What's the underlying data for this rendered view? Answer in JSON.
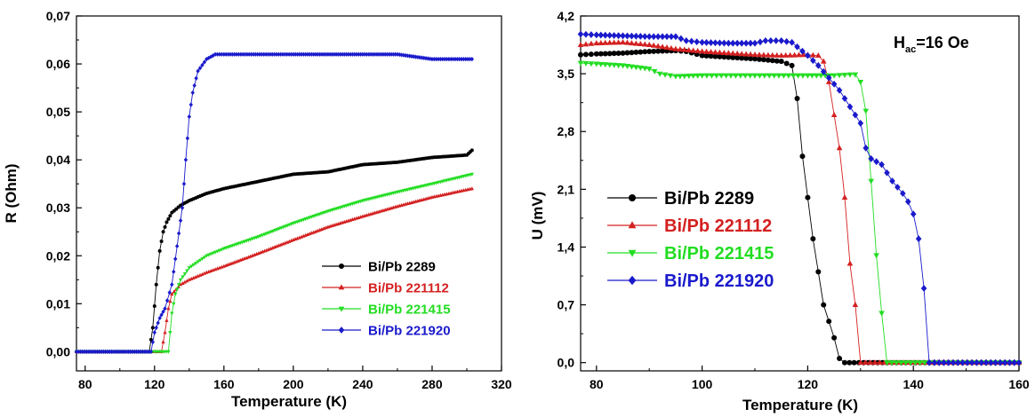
{
  "chart_data": [
    {
      "type": "line",
      "xlabel": "Temperature (K)",
      "ylabel": "R (Ohm)",
      "xlim": [
        75,
        320
      ],
      "ylim": [
        -0.004,
        0.07
      ],
      "xticks": [
        "80",
        "120",
        "160",
        "200",
        "240",
        "280",
        "320"
      ],
      "xtick_values": [
        80,
        120,
        160,
        200,
        240,
        280,
        320
      ],
      "yticks": [
        "0,00",
        "0,01",
        "0,02",
        "0,03",
        "0,04",
        "0,05",
        "0,06",
        "0,07"
      ],
      "ytick_values": [
        0,
        0.01,
        0.02,
        0.03,
        0.04,
        0.05,
        0.06,
        0.07
      ],
      "legend_position": "bottom-right",
      "series": [
        {
          "name": "Bi/Pb 2289",
          "color": "#000000",
          "marker": "circle",
          "x": [
            75,
            117,
            119,
            121,
            123,
            125,
            127,
            130,
            135,
            140,
            150,
            160,
            180,
            200,
            220,
            240,
            260,
            280,
            300,
            303
          ],
          "y": [
            0,
            0,
            0.005,
            0.014,
            0.021,
            0.025,
            0.027,
            0.029,
            0.0305,
            0.0315,
            0.033,
            0.034,
            0.0355,
            0.037,
            0.0375,
            0.039,
            0.0395,
            0.0405,
            0.041,
            0.042
          ]
        },
        {
          "name": "Bi/Pb 221112",
          "color": "#d42020",
          "marker": "triangle-up",
          "x": [
            75,
            124,
            126,
            128,
            130,
            135,
            140,
            150,
            160,
            180,
            200,
            220,
            240,
            260,
            280,
            303
          ],
          "y": [
            0,
            0,
            0.004,
            0.009,
            0.012,
            0.014,
            0.015,
            0.0165,
            0.0178,
            0.0205,
            0.0233,
            0.026,
            0.0282,
            0.0303,
            0.0322,
            0.034
          ]
        },
        {
          "name": "Bi/Pb 221415",
          "color": "#22dd22",
          "marker": "triangle-down",
          "x": [
            75,
            128,
            130,
            132,
            135,
            140,
            150,
            160,
            180,
            200,
            220,
            240,
            260,
            280,
            303
          ],
          "y": [
            0,
            0,
            0.008,
            0.012,
            0.015,
            0.0175,
            0.02,
            0.0215,
            0.024,
            0.0268,
            0.0293,
            0.0315,
            0.0333,
            0.035,
            0.037
          ]
        },
        {
          "name": "Bi/Pb 221920",
          "color": "#1a1acc",
          "marker": "diamond",
          "x": [
            75,
            118,
            120,
            123,
            126,
            130,
            133,
            136,
            138,
            140,
            142,
            145,
            150,
            155,
            160,
            200,
            220,
            240,
            260,
            280,
            303
          ],
          "y": [
            0,
            0,
            0.004,
            0.007,
            0.009,
            0.014,
            0.022,
            0.03,
            0.04,
            0.049,
            0.054,
            0.0585,
            0.061,
            0.062,
            0.062,
            0.062,
            0.062,
            0.062,
            0.062,
            0.061,
            0.061
          ]
        }
      ]
    },
    {
      "type": "line",
      "xlabel": "Temperature (K)",
      "ylabel": "U (mV)",
      "annotation": "H",
      "annotation_sub": "ac",
      "annotation_tail": "=16 Oe",
      "xlim": [
        77,
        160
      ],
      "ylim": [
        -0.1,
        4.2
      ],
      "xticks": [
        "80",
        "100",
        "120",
        "140",
        "160"
      ],
      "xtick_values": [
        80,
        100,
        120,
        140,
        160
      ],
      "yticks": [
        "0,0",
        "0,7",
        "1,4",
        "2,1",
        "2,8",
        "3,5",
        "4,2"
      ],
      "ytick_values": [
        0,
        0.7,
        1.4,
        2.1,
        2.8,
        3.5,
        4.2
      ],
      "legend_position": "center-left",
      "series": [
        {
          "name": "Bi/Pb 2289",
          "color": "#000000",
          "marker": "circle",
          "x": [
            77,
            80,
            85,
            90,
            95,
            97,
            100,
            105,
            110,
            115,
            117,
            118,
            119,
            120,
            121,
            122,
            123,
            124,
            125,
            126,
            127,
            160
          ],
          "y": [
            3.73,
            3.74,
            3.75,
            3.77,
            3.78,
            3.77,
            3.72,
            3.7,
            3.68,
            3.65,
            3.6,
            3.2,
            2.5,
            2.0,
            1.5,
            1.1,
            0.7,
            0.5,
            0.3,
            0.05,
            0,
            0
          ]
        },
        {
          "name": "Bi/Pb 221112",
          "color": "#d42020",
          "marker": "triangle-up",
          "x": [
            77,
            80,
            85,
            90,
            95,
            100,
            105,
            110,
            115,
            120,
            122,
            123,
            124,
            125,
            126,
            127,
            128,
            129,
            130,
            160
          ],
          "y": [
            3.85,
            3.87,
            3.88,
            3.85,
            3.8,
            3.77,
            3.75,
            3.73,
            3.72,
            3.73,
            3.72,
            3.65,
            3.4,
            3.0,
            2.6,
            2.0,
            1.2,
            0.7,
            0,
            0
          ]
        },
        {
          "name": "Bi/Pb 221415",
          "color": "#22dd22",
          "marker": "triangle-down",
          "x": [
            77,
            80,
            85,
            90,
            92,
            95,
            100,
            110,
            120,
            125,
            128,
            129,
            130,
            131,
            132,
            133,
            134,
            135,
            160
          ],
          "y": [
            3.63,
            3.62,
            3.6,
            3.56,
            3.5,
            3.47,
            3.48,
            3.48,
            3.48,
            3.48,
            3.49,
            3.49,
            3.4,
            3.05,
            2.2,
            1.3,
            0.6,
            0,
            0
          ]
        },
        {
          "name": "Bi/Pb 221920",
          "color": "#1a1acc",
          "marker": "diamond",
          "x": [
            77,
            80,
            85,
            90,
            95,
            97,
            100,
            105,
            110,
            112,
            115,
            117,
            120,
            122,
            124,
            126,
            128,
            130,
            131,
            132,
            134,
            136,
            138,
            139,
            140,
            141,
            142,
            143,
            144,
            160
          ],
          "y": [
            3.98,
            3.97,
            3.96,
            3.95,
            3.95,
            3.9,
            3.88,
            3.87,
            3.87,
            3.9,
            3.9,
            3.88,
            3.72,
            3.6,
            3.45,
            3.3,
            3.1,
            2.9,
            2.6,
            2.47,
            2.4,
            2.2,
            2.05,
            1.95,
            1.8,
            1.5,
            0.9,
            0,
            0,
            0
          ]
        }
      ]
    }
  ]
}
